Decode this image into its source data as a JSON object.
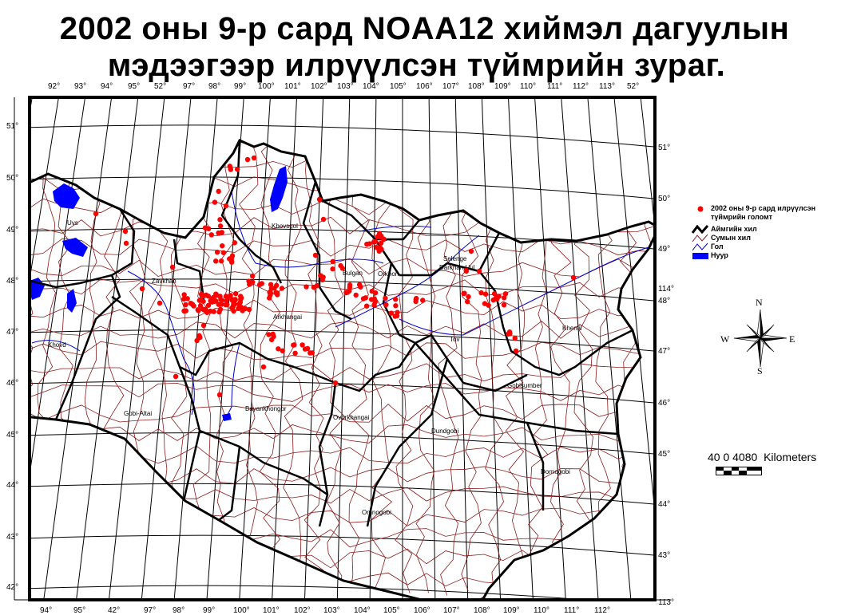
{
  "title": {
    "line1": "2002 оны 9-р сард NOAA12 хиймэл дагуулын",
    "line2": "мэдээгээр илрүүлсэн түймрийн зураг."
  },
  "graticule": {
    "top_lon_labels": [
      "92°",
      "93°",
      "94°",
      "95°",
      "52°",
      "97°",
      "98°",
      "99°",
      "100°",
      "101°",
      "102°",
      "103°",
      "104°",
      "105°",
      "106°",
      "107°",
      "108°",
      "109°",
      "110°",
      "111°",
      "112°",
      "113°",
      "52°"
    ],
    "bottom_lon_labels": [
      "94°",
      "95°",
      "42°",
      "97°",
      "98°",
      "99°",
      "100°",
      "101°",
      "102°",
      "103°",
      "104°",
      "105°",
      "106°",
      "107°",
      "108°",
      "109°",
      "110°",
      "111°",
      "112°"
    ],
    "left_lat_labels": [
      "51°",
      "50°",
      "49°",
      "48°",
      "47°",
      "46°",
      "45°",
      "44°",
      "43°",
      "42°"
    ],
    "right_lat_labels": [
      "51°",
      "50°",
      "49°",
      "114°",
      "48°",
      "47°",
      "46°",
      "45°",
      "44°",
      "43°",
      "113°"
    ]
  },
  "provinces": [
    "Uvs",
    "Zavkhan",
    "Khovd",
    "Gobi-Altai",
    "Khovsgol",
    "Bulgan",
    "Orkhon",
    "Selenge",
    "Darkhan Uul",
    "Arkhangai",
    "Tov",
    "Khentii",
    "Gobisumber",
    "Bayankhongor",
    "Ovorkhangai",
    "Dundgobi",
    "Dornogobi",
    "Omnogobi"
  ],
  "legend": {
    "fire_label_1": "2002 оны 9-р сард илрүүлсэн",
    "fire_label_2": "түймрийн голомт",
    "aimag_border": "Аймгийн хил",
    "soum_border": "Сумын хил",
    "river": "Гол",
    "lake": "Нуур"
  },
  "compass": {
    "n": "N",
    "s": "S",
    "e": "E",
    "w": "W"
  },
  "scale": {
    "ticks": "40 0 4080",
    "unit": "Kilometers"
  },
  "colors": {
    "fire": "#ff0000",
    "lake": "#0000ff",
    "river": "#0000cc",
    "soum": "#8b1a1a",
    "aimag": "#000000"
  }
}
